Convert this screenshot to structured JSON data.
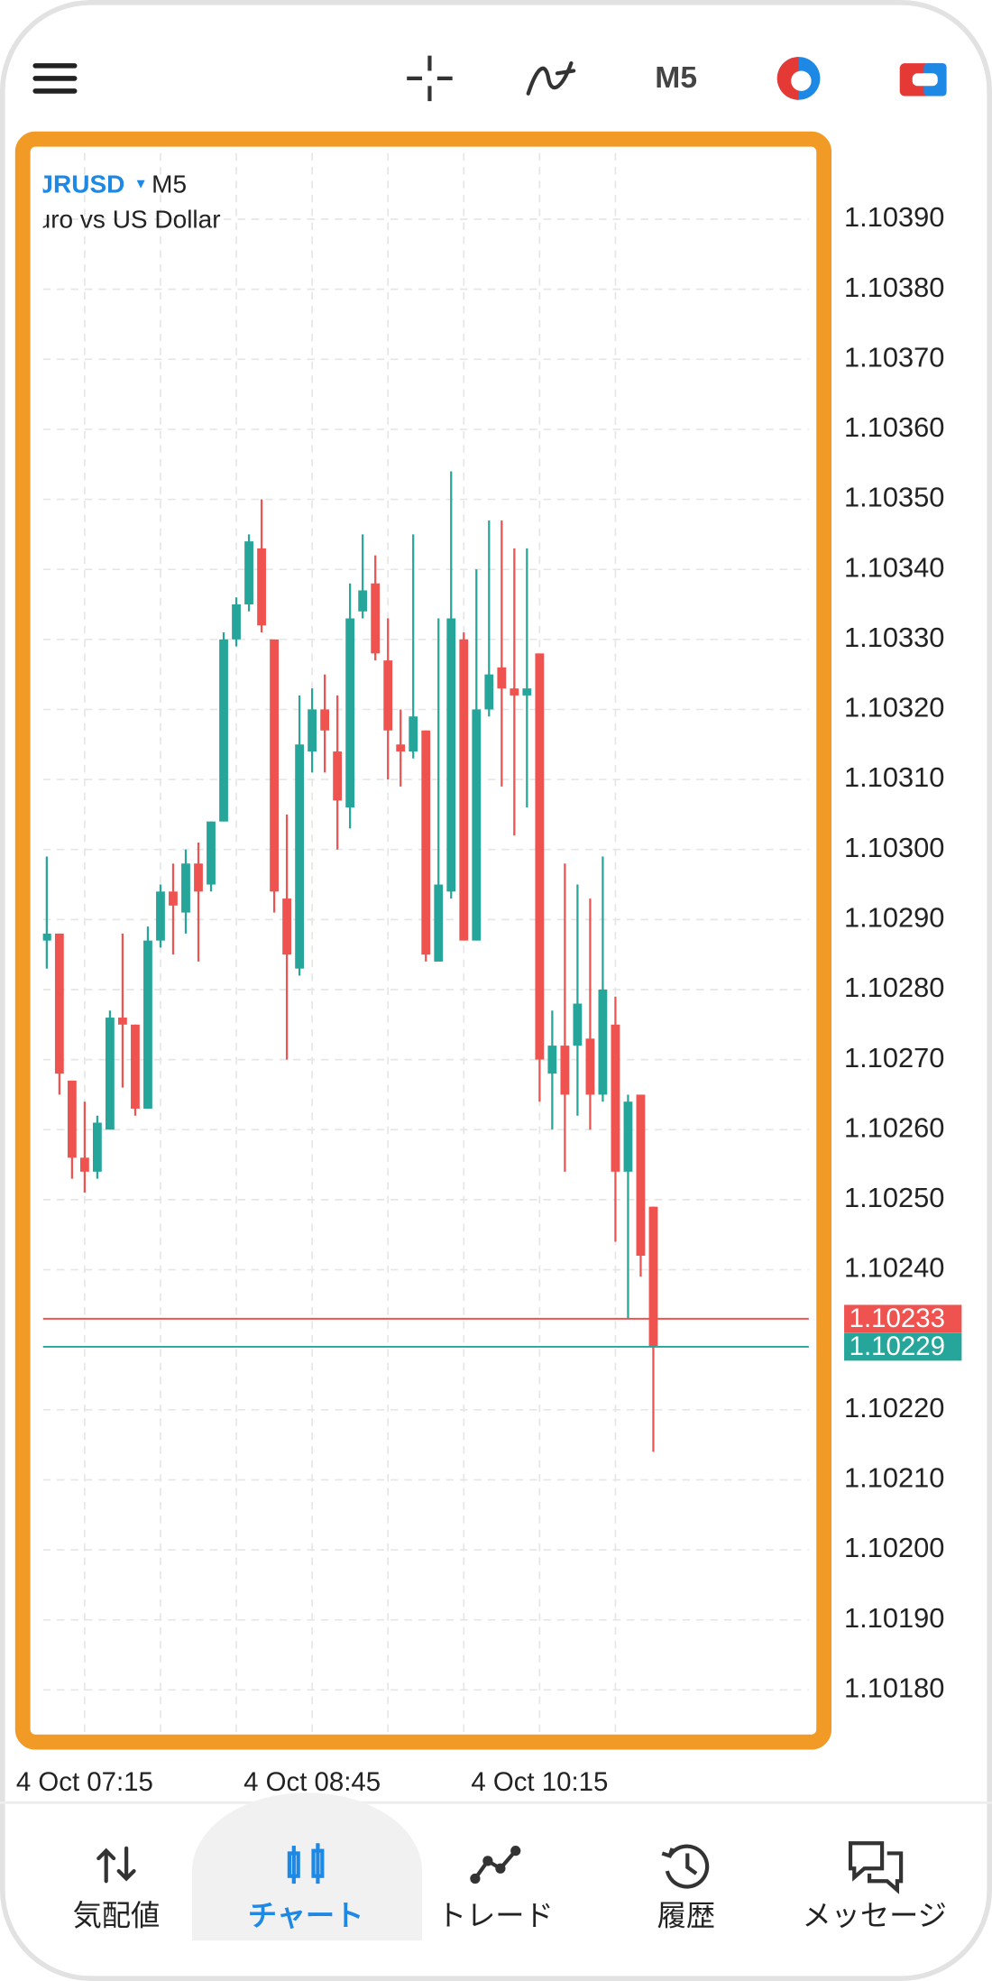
{
  "toolbar": {
    "timeframe": "M5"
  },
  "chart_data": {
    "type": "candlestick",
    "symbol": "JRUSD",
    "timeframe": "M5",
    "description": "uro vs US Dollar",
    "categories": [
      null,
      null,
      null,
      "4 Oct 07:15",
      null,
      null,
      null,
      null,
      null,
      null,
      null,
      null,
      null,
      null,
      null,
      null,
      null,
      null,
      null,
      null,
      null,
      "4 Oct 08:45",
      null,
      null,
      null,
      null,
      null,
      null,
      null,
      null,
      null,
      null,
      null,
      null,
      null,
      null,
      null,
      null,
      null,
      "4 Oct 10:15",
      null,
      null,
      null,
      null,
      null,
      null,
      null,
      null,
      null
    ],
    "open": [
      1.10287,
      1.10288,
      1.10267,
      1.10256,
      1.10254,
      1.1026,
      1.10276,
      1.10275,
      1.10263,
      1.10287,
      1.10294,
      1.10291,
      1.10298,
      1.10295,
      1.10304,
      1.1033,
      1.10335,
      1.10343,
      1.1033,
      1.10293,
      1.10283,
      1.10314,
      1.1032,
      1.10314,
      1.10306,
      1.10334,
      1.10338,
      1.10327,
      1.10315,
      1.10314,
      1.10317,
      1.10284,
      1.10294,
      1.1033,
      1.10287,
      1.1032,
      1.10326,
      1.10323,
      1.10322,
      1.10328,
      1.10268,
      1.10272,
      1.10272,
      1.10273,
      1.10265,
      1.10275,
      1.10254,
      1.10265,
      1.10249
    ],
    "high": [
      1.10299,
      1.10288,
      1.10267,
      1.10264,
      1.10262,
      1.10277,
      1.10288,
      1.10275,
      1.10289,
      1.10295,
      1.10298,
      1.103,
      1.10301,
      1.10304,
      1.10331,
      1.10336,
      1.10345,
      1.1035,
      1.1033,
      1.10305,
      1.10322,
      1.10323,
      1.10325,
      1.10322,
      1.10338,
      1.10345,
      1.10342,
      1.10333,
      1.1032,
      1.10345,
      1.10317,
      1.10333,
      1.10354,
      1.10331,
      1.1034,
      1.10347,
      1.10347,
      1.10343,
      1.10343,
      1.10328,
      1.10277,
      1.10298,
      1.10295,
      1.10293,
      1.10299,
      1.10279,
      1.10265,
      1.10265,
      1.10249
    ],
    "low": [
      1.10283,
      1.10265,
      1.10253,
      1.10251,
      1.10253,
      1.1026,
      1.10266,
      1.10262,
      1.10263,
      1.10286,
      1.10285,
      1.10288,
      1.10284,
      1.10294,
      1.10304,
      1.10329,
      1.10334,
      1.10331,
      1.10291,
      1.1027,
      1.10282,
      1.10311,
      1.10311,
      1.103,
      1.10303,
      1.10333,
      1.10327,
      1.1031,
      1.10309,
      1.10313,
      1.10284,
      1.10284,
      1.10293,
      1.10287,
      1.10287,
      1.10319,
      1.10309,
      1.10302,
      1.10306,
      1.10264,
      1.1026,
      1.10254,
      1.10262,
      1.1026,
      1.10264,
      1.10244,
      1.10233,
      1.10239,
      1.10214
    ],
    "close": [
      1.10288,
      1.10268,
      1.10256,
      1.10254,
      1.10261,
      1.10276,
      1.10275,
      1.10263,
      1.10287,
      1.10294,
      1.10292,
      1.10298,
      1.10294,
      1.10304,
      1.1033,
      1.10335,
      1.10344,
      1.10332,
      1.10294,
      1.10285,
      1.10315,
      1.1032,
      1.10317,
      1.10307,
      1.10333,
      1.10337,
      1.10328,
      1.10317,
      1.10314,
      1.10319,
      1.10285,
      1.10295,
      1.10333,
      1.10287,
      1.1032,
      1.10325,
      1.10323,
      1.10322,
      1.10323,
      1.1027,
      1.10272,
      1.10265,
      1.10278,
      1.10265,
      1.1028,
      1.10254,
      1.10264,
      1.10242,
      1.10229
    ],
    "up_color": "#26a69a",
    "down_color": "#ef5350",
    "ylim": [
      1.10174,
      1.104
    ],
    "yticks": [
      {
        "value": 1.1039,
        "label": "1.10390"
      },
      {
        "value": 1.1038,
        "label": "1.10380"
      },
      {
        "value": 1.1037,
        "label": "1.10370"
      },
      {
        "value": 1.1036,
        "label": "1.10360"
      },
      {
        "value": 1.1035,
        "label": "1.10350"
      },
      {
        "value": 1.1034,
        "label": "1.10340"
      },
      {
        "value": 1.1033,
        "label": "1.10330"
      },
      {
        "value": 1.1032,
        "label": "1.10320"
      },
      {
        "value": 1.1031,
        "label": "1.10310"
      },
      {
        "value": 1.103,
        "label": "1.10300"
      },
      {
        "value": 1.1029,
        "label": "1.10290"
      },
      {
        "value": 1.1028,
        "label": "1.10280"
      },
      {
        "value": 1.1027,
        "label": "1.10270"
      },
      {
        "value": 1.1026,
        "label": "1.10260"
      },
      {
        "value": 1.1025,
        "label": "1.10250"
      },
      {
        "value": 1.1024,
        "label": "1.10240"
      },
      {
        "value": 1.1022,
        "label": "1.10220"
      },
      {
        "value": 1.1021,
        "label": "1.10210"
      },
      {
        "value": 1.102,
        "label": "1.10200"
      },
      {
        "value": 1.1019,
        "label": "1.10190"
      },
      {
        "value": 1.1018,
        "label": "1.10180"
      }
    ],
    "ask": 1.10233,
    "bid": 1.10229,
    "ask_color": "#ef5350",
    "bid_color": "#26a69a",
    "grid": true
  },
  "nav": {
    "items": [
      "気配値",
      "チャート",
      "トレード",
      "履歴",
      "メッセージ"
    ],
    "active": 1
  }
}
